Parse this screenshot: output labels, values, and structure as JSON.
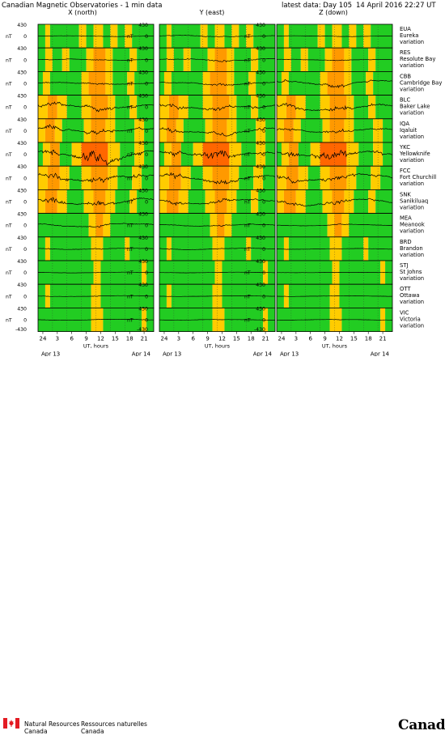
{
  "header": {
    "title": "Canadian Magnetic Observatories - 1 min data",
    "latest_label": "latest data: Day 105",
    "date_time": "14 April 2016 22:27 UT"
  },
  "footer": {
    "dept_en_line1": "Natural Resources",
    "dept_en_line2": "Canada",
    "dept_fr_line1": "Ressources naturelles",
    "dept_fr_line2": "Canada",
    "wordmark": "Canada"
  },
  "chart_data": {
    "type": "line",
    "title": "Canadian Magnetic Observatories - 1 min data",
    "columns": [
      "X (north)",
      "Y (east)",
      "Z (down)"
    ],
    "unit_label": "nT",
    "y_tick_labels": [
      "430",
      "0",
      "-430"
    ],
    "ylim": [
      -430,
      430
    ],
    "x_tick_labels": [
      "24",
      "3",
      "6",
      "9",
      "12",
      "15",
      "18",
      "21"
    ],
    "x_tick_hours": [
      0,
      3,
      6,
      9,
      12,
      15,
      18,
      21
    ],
    "xlim_hours": [
      -1,
      23
    ],
    "xlabel": "UT, hours",
    "date_left": "Apr 13",
    "date_right": "Apr 14",
    "activity_colors": {
      "quiet": "#22cc22",
      "moderate": "#ffcc00",
      "active": "#ff9900",
      "storm": "#ff6600"
    },
    "stations": [
      {
        "code": "EUA",
        "name": "Eureka",
        "amp": [
          30,
          60,
          25
        ],
        "activity": [
          [
            -1,
            0.5,
            "quiet"
          ],
          [
            0.5,
            1.5,
            "moderate"
          ],
          [
            1.5,
            7.5,
            "quiet"
          ],
          [
            7.5,
            9,
            "moderate"
          ],
          [
            9,
            10.5,
            "quiet"
          ],
          [
            10.5,
            12.5,
            "moderate"
          ],
          [
            12.5,
            14,
            "quiet"
          ],
          [
            14,
            15.5,
            "moderate"
          ],
          [
            15.5,
            17,
            "quiet"
          ],
          [
            17,
            18.5,
            "moderate"
          ],
          [
            18.5,
            23,
            "quiet"
          ]
        ]
      },
      {
        "code": "RES",
        "name": "Resolute Bay",
        "amp": [
          50,
          80,
          40
        ],
        "activity": [
          [
            -1,
            0.5,
            "quiet"
          ],
          [
            0.5,
            2,
            "moderate"
          ],
          [
            2,
            4,
            "quiet"
          ],
          [
            4,
            5.5,
            "moderate"
          ],
          [
            5.5,
            9,
            "quiet"
          ],
          [
            9,
            10.5,
            "moderate"
          ],
          [
            10.5,
            13,
            "active"
          ],
          [
            13,
            14.5,
            "moderate"
          ],
          [
            14.5,
            18,
            "quiet"
          ],
          [
            18,
            19.5,
            "moderate"
          ],
          [
            19.5,
            23,
            "quiet"
          ]
        ]
      },
      {
        "code": "CBB",
        "name": "Cambridge Bay",
        "amp": [
          90,
          110,
          180
        ],
        "activity": [
          [
            -1,
            0,
            "quiet"
          ],
          [
            0,
            1.5,
            "moderate"
          ],
          [
            1.5,
            8,
            "quiet"
          ],
          [
            8,
            9.5,
            "moderate"
          ],
          [
            9.5,
            13,
            "active"
          ],
          [
            13,
            14.5,
            "moderate"
          ],
          [
            14.5,
            17.5,
            "quiet"
          ],
          [
            17.5,
            19,
            "moderate"
          ],
          [
            19,
            23,
            "quiet"
          ]
        ]
      },
      {
        "code": "BLC",
        "name": "Baker Lake",
        "amp": [
          220,
          200,
          230
        ],
        "activity": [
          [
            -1,
            1,
            "moderate"
          ],
          [
            1,
            3,
            "active"
          ],
          [
            3,
            5,
            "moderate"
          ],
          [
            5,
            8,
            "quiet"
          ],
          [
            8,
            10,
            "moderate"
          ],
          [
            10,
            13.5,
            "active"
          ],
          [
            13.5,
            15,
            "moderate"
          ],
          [
            15,
            18,
            "quiet"
          ],
          [
            18,
            19.5,
            "moderate"
          ],
          [
            19.5,
            23,
            "quiet"
          ]
        ]
      },
      {
        "code": "IQA",
        "name": "Iqaluit",
        "amp": [
          200,
          180,
          150
        ],
        "activity": [
          [
            -1,
            0.5,
            "moderate"
          ],
          [
            0.5,
            2.5,
            "active"
          ],
          [
            2.5,
            4,
            "moderate"
          ],
          [
            4,
            8.5,
            "quiet"
          ],
          [
            8.5,
            10,
            "moderate"
          ],
          [
            10,
            13,
            "active"
          ],
          [
            13,
            15,
            "moderate"
          ],
          [
            15,
            19,
            "quiet"
          ],
          [
            19,
            21,
            "moderate"
          ],
          [
            21,
            23,
            "quiet"
          ]
        ]
      },
      {
        "code": "YKC",
        "name": "Yellowknife",
        "amp": [
          330,
          230,
          260
        ],
        "activity": [
          [
            -1,
            0,
            "quiet"
          ],
          [
            0,
            1.5,
            "moderate"
          ],
          [
            1.5,
            3.5,
            "active"
          ],
          [
            3.5,
            6,
            "quiet"
          ],
          [
            6,
            8,
            "moderate"
          ],
          [
            8,
            13.5,
            "storm"
          ],
          [
            13.5,
            16,
            "moderate"
          ],
          [
            16,
            19,
            "quiet"
          ],
          [
            19,
            21,
            "moderate"
          ],
          [
            21,
            23,
            "quiet"
          ]
        ]
      },
      {
        "code": "FCC",
        "name": "Fort Churchill",
        "amp": [
          260,
          230,
          240
        ],
        "activity": [
          [
            -1,
            1,
            "moderate"
          ],
          [
            1,
            3.5,
            "active"
          ],
          [
            3.5,
            5.5,
            "moderate"
          ],
          [
            5.5,
            8,
            "quiet"
          ],
          [
            8,
            10,
            "moderate"
          ],
          [
            10,
            13.5,
            "active"
          ],
          [
            13.5,
            15.5,
            "moderate"
          ],
          [
            15.5,
            18.5,
            "quiet"
          ],
          [
            18.5,
            20.5,
            "moderate"
          ],
          [
            20.5,
            23,
            "quiet"
          ]
        ]
      },
      {
        "code": "SNK",
        "name": "Sanikiluaq",
        "amp": [
          230,
          190,
          200
        ],
        "activity": [
          [
            -1,
            0.5,
            "moderate"
          ],
          [
            0.5,
            3,
            "active"
          ],
          [
            3,
            5,
            "moderate"
          ],
          [
            5,
            8.5,
            "quiet"
          ],
          [
            8.5,
            10.5,
            "moderate"
          ],
          [
            10.5,
            13,
            "active"
          ],
          [
            13,
            15,
            "moderate"
          ],
          [
            15,
            18,
            "quiet"
          ],
          [
            18,
            19.5,
            "moderate"
          ],
          [
            19.5,
            23,
            "quiet"
          ]
        ]
      },
      {
        "code": "MEA",
        "name": "Meanook",
        "amp": [
          130,
          90,
          60
        ],
        "activity": [
          [
            -1,
            9.5,
            "quiet"
          ],
          [
            9.5,
            11,
            "moderate"
          ],
          [
            11,
            12.5,
            "active"
          ],
          [
            12.5,
            14,
            "moderate"
          ],
          [
            14,
            23,
            "quiet"
          ]
        ]
      },
      {
        "code": "BRD",
        "name": "Brandon",
        "amp": [
          70,
          60,
          40
        ],
        "activity": [
          [
            -1,
            0.5,
            "quiet"
          ],
          [
            0.5,
            1.5,
            "moderate"
          ],
          [
            1.5,
            10,
            "quiet"
          ],
          [
            10,
            12.5,
            "moderate"
          ],
          [
            12.5,
            17,
            "quiet"
          ],
          [
            17,
            18,
            "moderate"
          ],
          [
            18,
            23,
            "quiet"
          ]
        ]
      },
      {
        "code": "STJ",
        "name": "St Johns",
        "amp": [
          30,
          25,
          20
        ],
        "activity": [
          [
            -1,
            10.5,
            "quiet"
          ],
          [
            10.5,
            12,
            "moderate"
          ],
          [
            12,
            20.5,
            "quiet"
          ],
          [
            20.5,
            21.5,
            "moderate"
          ],
          [
            21.5,
            23,
            "quiet"
          ]
        ]
      },
      {
        "code": "OTT",
        "name": "Ottawa",
        "amp": [
          40,
          30,
          25
        ],
        "activity": [
          [
            -1,
            0.5,
            "quiet"
          ],
          [
            0.5,
            1.5,
            "moderate"
          ],
          [
            1.5,
            10,
            "quiet"
          ],
          [
            10,
            12,
            "moderate"
          ],
          [
            12,
            23,
            "quiet"
          ]
        ]
      },
      {
        "code": "VIC",
        "name": "Victoria",
        "amp": [
          40,
          35,
          30
        ],
        "activity": [
          [
            -1,
            10,
            "quiet"
          ],
          [
            10,
            12.5,
            "moderate"
          ],
          [
            12.5,
            20.5,
            "quiet"
          ],
          [
            20.5,
            21.5,
            "moderate"
          ],
          [
            21.5,
            23,
            "quiet"
          ]
        ]
      }
    ]
  }
}
